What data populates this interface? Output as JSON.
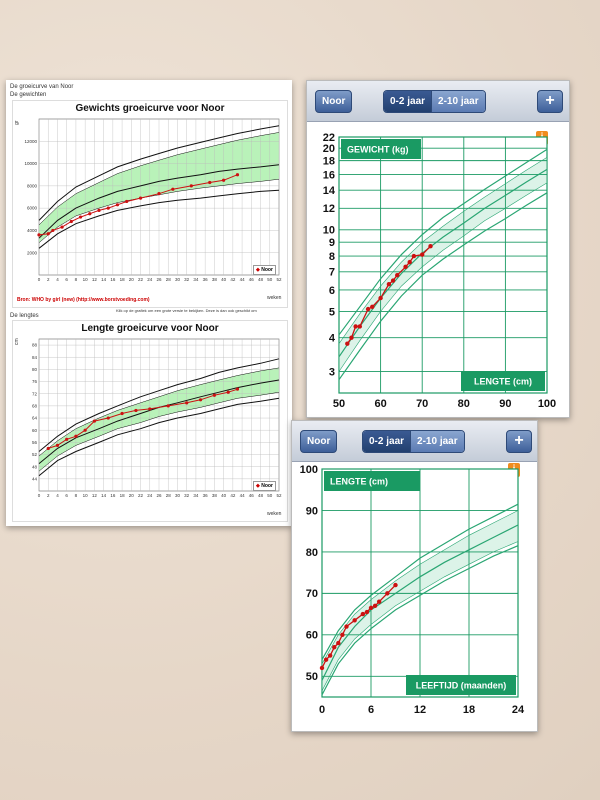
{
  "doc": {
    "header_line1": "De groeicurve van Noor",
    "header_line2": "De gewichten",
    "weight_title": "Gewichts groeicurve voor Noor",
    "weight_y_unit": "gr",
    "weight_x_unit": "weken",
    "weight_legend": "Noor",
    "source": "Bron: WHO by girl (new) (http://www.borstvoeding.com)",
    "note": "Klik op de grafiek om een grote versie te bekijken. Deze is dan ook geschikt om",
    "length_section": "De lengtes",
    "length_title": "Lengte groeicurve voor Noor",
    "length_y_unit": "cm",
    "length_x_unit": "weken",
    "length_legend": "Noor"
  },
  "app1": {
    "back_button": "Noor",
    "tabs": [
      "0-2 jaar",
      "2-10 jaar"
    ],
    "add_button": "+",
    "info_icon": "i",
    "y_label": "GEWICHT (kg)",
    "x_label": "LENGTE (cm)"
  },
  "app2": {
    "back_button": "Noor",
    "tabs": [
      "0-2 jaar",
      "2-10 jaar"
    ],
    "add_button": "+",
    "info_icon": "i",
    "y_label": "LENGTE (cm)",
    "x_label": "LEEFTIJD (maanden)"
  },
  "chart_data": [
    {
      "id": "weight-weeks",
      "type": "line",
      "title": "Gewichts groeicurve voor Noor",
      "xlabel": "weken",
      "ylabel": "gr",
      "xlim": [
        0,
        52
      ],
      "ylim": [
        0,
        14000
      ],
      "x_ticks": [
        0,
        2,
        4,
        6,
        8,
        10,
        12,
        14,
        16,
        18,
        20,
        22,
        24,
        26,
        28,
        30,
        32,
        34,
        36,
        38,
        40,
        42,
        44,
        46,
        48,
        50,
        52
      ],
      "y_ticks": [
        2000,
        4000,
        6000,
        8000,
        10000,
        12000
      ],
      "series": [
        {
          "name": "Noor",
          "color": "#cc1111",
          "x": [
            0,
            2,
            3,
            5,
            7,
            9,
            11,
            13,
            15,
            17,
            19,
            22,
            26,
            29,
            33,
            37,
            40,
            43
          ],
          "y": [
            3600,
            3700,
            4000,
            4300,
            4800,
            5200,
            5500,
            5800,
            6000,
            6300,
            6600,
            6900,
            7300,
            7700,
            8000,
            8300,
            8500,
            9000
          ]
        }
      ],
      "curves": {
        "color": "#111111",
        "band_color": "#b9f2b9",
        "x": [
          0,
          4,
          8,
          13,
          17,
          22,
          26,
          30,
          35,
          39,
          43,
          48,
          52
        ],
        "outer_high": [
          4900,
          6600,
          7900,
          8900,
          9700,
          10400,
          10900,
          11400,
          11900,
          12300,
          12700,
          13100,
          13400
        ],
        "band_high": [
          4500,
          6100,
          7300,
          8300,
          9100,
          9800,
          10300,
          10800,
          11300,
          11700,
          12100,
          12500,
          12800
        ],
        "median": [
          3300,
          4900,
          6000,
          6900,
          7500,
          8000,
          8400,
          8700,
          9000,
          9300,
          9500,
          9700,
          9900
        ],
        "band_low": [
          2900,
          4300,
          5300,
          6000,
          6500,
          6900,
          7200,
          7500,
          7800,
          8000,
          8200,
          8400,
          8600
        ],
        "outer_low": [
          2400,
          3700,
          4600,
          5300,
          5800,
          6200,
          6500,
          6700,
          6900,
          7100,
          7300,
          7500,
          7600
        ]
      }
    },
    {
      "id": "length-weeks",
      "type": "line",
      "title": "Lengte groeicurve voor Noor",
      "xlabel": "weken",
      "ylabel": "cm",
      "xlim": [
        0,
        52
      ],
      "ylim": [
        40,
        90
      ],
      "x_ticks": [
        0,
        2,
        4,
        6,
        8,
        10,
        12,
        14,
        16,
        18,
        20,
        22,
        24,
        26,
        28,
        30,
        32,
        34,
        36,
        38,
        40,
        42,
        44,
        46,
        48,
        50,
        52
      ],
      "y_ticks": [
        44,
        48,
        52,
        56,
        60,
        64,
        68,
        72,
        76,
        80,
        84,
        88
      ],
      "series": [
        {
          "name": "Noor",
          "color": "#cc1111",
          "x": [
            2,
            4,
            6,
            8,
            10,
            12,
            15,
            18,
            21,
            24,
            28,
            32,
            35,
            38,
            41,
            43
          ],
          "y": [
            54,
            55,
            57,
            58,
            60,
            63,
            64,
            65.5,
            66.5,
            67,
            68,
            69,
            70,
            71.5,
            72.5,
            73.5
          ]
        }
      ],
      "curves": {
        "color": "#111111",
        "band_color": "#b9f2b9",
        "x": [
          0,
          4,
          8,
          13,
          17,
          22,
          26,
          30,
          35,
          39,
          43,
          48,
          52
        ],
        "outer_high": [
          53,
          58,
          62,
          65.5,
          68,
          71,
          73,
          75,
          77,
          79,
          80.5,
          82,
          83.5
        ],
        "band_high": [
          51.5,
          56.5,
          60.5,
          64,
          66.5,
          69,
          71,
          73,
          75,
          76.5,
          78,
          79.5,
          80.5
        ],
        "median": [
          49,
          54,
          57.5,
          60.5,
          63,
          65.5,
          67.5,
          69,
          71,
          72.5,
          74,
          75.5,
          76.5
        ],
        "band_low": [
          46.5,
          51.5,
          55,
          58,
          60.5,
          62.5,
          64.5,
          66,
          67.5,
          69,
          70.5,
          71.5,
          72.5
        ],
        "outer_low": [
          45,
          50,
          53,
          56,
          58.5,
          60.5,
          62.5,
          64,
          65.5,
          67,
          68.5,
          69.5,
          70.5
        ]
      }
    },
    {
      "id": "weight-for-length",
      "type": "line",
      "xlabel": "LENGTE (cm)",
      "ylabel": "GEWICHT (kg)",
      "y_scale": "log",
      "xlim": [
        50,
        100
      ],
      "ylim": [
        2.5,
        22
      ],
      "x_ticks": [
        50,
        60,
        70,
        80,
        90,
        100
      ],
      "y_ticks": [
        3,
        4,
        5,
        6,
        7,
        8,
        9,
        10,
        12,
        14,
        16,
        18,
        20,
        22
      ],
      "series": [
        {
          "name": "Noor",
          "color": "#cc1111",
          "x": [
            52,
            53,
            54,
            55,
            57,
            58,
            60,
            62,
            63,
            64,
            66,
            67,
            68,
            70,
            72
          ],
          "y": [
            3.8,
            4.0,
            4.4,
            4.4,
            5.1,
            5.2,
            5.6,
            6.3,
            6.5,
            6.8,
            7.3,
            7.6,
            8.0,
            8.1,
            8.7
          ]
        }
      ],
      "curves": {
        "color": "#2aa673",
        "band_color": "#dcf3e8",
        "x": [
          50,
          55,
          60,
          65,
          70,
          75,
          80,
          85,
          90,
          95,
          100
        ],
        "outer_high": [
          4.1,
          5.2,
          6.6,
          8.1,
          9.6,
          11.1,
          12.5,
          14.1,
          15.8,
          17.7,
          19.8
        ],
        "band_high": [
          3.8,
          4.9,
          6.2,
          7.6,
          9.0,
          10.3,
          11.7,
          13.2,
          14.8,
          16.6,
          18.5
        ],
        "median": [
          3.4,
          4.4,
          5.6,
          6.9,
          8.2,
          9.4,
          10.6,
          12.0,
          13.4,
          15.0,
          16.7
        ],
        "band_low": [
          3.0,
          3.9,
          5.0,
          6.2,
          7.3,
          8.4,
          9.5,
          10.8,
          12.0,
          13.4,
          14.9
        ],
        "outer_low": [
          2.8,
          3.6,
          4.6,
          5.7,
          6.8,
          7.8,
          8.8,
          9.9,
          11.0,
          12.3,
          13.7
        ]
      }
    },
    {
      "id": "length-for-age",
      "type": "line",
      "xlabel": "LEEFTIJD (maanden)",
      "ylabel": "LENGTE (cm)",
      "xlim": [
        0,
        24
      ],
      "ylim": [
        45,
        100
      ],
      "x_ticks": [
        0,
        6,
        12,
        18,
        24
      ],
      "y_ticks": [
        50,
        60,
        70,
        80,
        90,
        100
      ],
      "series": [
        {
          "name": "Noor",
          "color": "#cc1111",
          "x": [
            0,
            0.5,
            1,
            1.5,
            2,
            2.5,
            3,
            4,
            5,
            5.5,
            6,
            6.5,
            7,
            8,
            9
          ],
          "y": [
            52,
            54,
            55,
            57,
            58,
            60,
            62,
            63.5,
            65,
            65.5,
            66.5,
            67,
            68,
            70,
            72
          ]
        }
      ],
      "curves": {
        "color": "#2aa673",
        "band_color": "#dcf3e8",
        "x": [
          0,
          2,
          4,
          6,
          9,
          12,
          15,
          18,
          21,
          24
        ],
        "outer_high": [
          54,
          61,
          66,
          69.5,
          74,
          78.5,
          82,
          85.5,
          88.5,
          91.5
        ],
        "band_high": [
          53,
          60,
          65,
          68.5,
          73,
          77,
          80.5,
          84,
          87,
          90
        ],
        "median": [
          49,
          57,
          62,
          66,
          70,
          74,
          77.5,
          80.5,
          83.5,
          86.5
        ],
        "band_low": [
          46.5,
          54,
          59,
          62.5,
          67,
          70.5,
          74,
          77,
          80,
          82.5
        ],
        "outer_low": [
          45.5,
          53,
          58,
          61.5,
          66,
          69.5,
          73,
          76,
          79,
          81.5
        ]
      }
    }
  ]
}
